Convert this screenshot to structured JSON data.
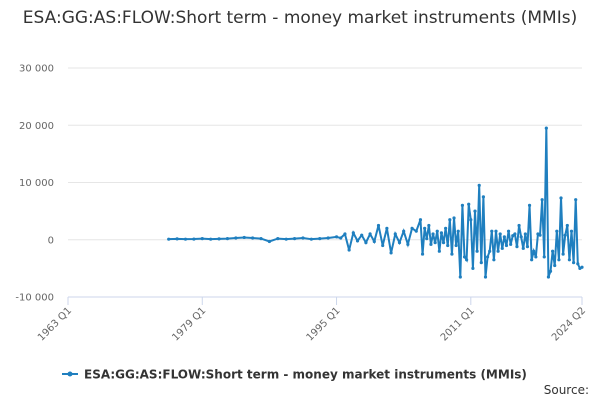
{
  "chart_data": {
    "type": "line",
    "title": "ESA:GG:AS:FLOW:Short term - money market instruments (MMIs)",
    "source": "Source:",
    "x": [
      "1975 Q1",
      "1976 Q1",
      "1977 Q1",
      "1978 Q1",
      "1979 Q1",
      "1980 Q1",
      "1981 Q1",
      "1982 Q1",
      "1983 Q1",
      "1984 Q1",
      "1985 Q1",
      "1986 Q1",
      "1987 Q1",
      "1988 Q1",
      "1989 Q1",
      "1990 Q1",
      "1991 Q1",
      "1992 Q1",
      "1993 Q1",
      "1994 Q1",
      "1995 Q1",
      "1995 Q3",
      "1996 Q1",
      "1996 Q3",
      "1997 Q1",
      "1997 Q3",
      "1998 Q1",
      "1998 Q3",
      "1999 Q1",
      "1999 Q3",
      "2000 Q1",
      "2000 Q3",
      "2001 Q1",
      "2001 Q3",
      "2002 Q1",
      "2002 Q3",
      "2003 Q1",
      "2003 Q3",
      "2004 Q1",
      "2004 Q3",
      "2005 Q1",
      "2005 Q2",
      "2005 Q3",
      "2005 Q4",
      "2006 Q1",
      "2006 Q2",
      "2006 Q3",
      "2006 Q4",
      "2007 Q1",
      "2007 Q2",
      "2007 Q3",
      "2007 Q4",
      "2008 Q1",
      "2008 Q2",
      "2008 Q3",
      "2008 Q4",
      "2009 Q1",
      "2009 Q2",
      "2009 Q3",
      "2009 Q4",
      "2010 Q1",
      "2010 Q2",
      "2010 Q3",
      "2010 Q4",
      "2011 Q1",
      "2011 Q2",
      "2011 Q3",
      "2011 Q4",
      "2012 Q1",
      "2012 Q2",
      "2012 Q3",
      "2012 Q4",
      "2013 Q1",
      "2013 Q2",
      "2013 Q3",
      "2013 Q4",
      "2014 Q1",
      "2014 Q2",
      "2014 Q3",
      "2014 Q4",
      "2015 Q1",
      "2015 Q2",
      "2015 Q3",
      "2015 Q4",
      "2016 Q1",
      "2016 Q2",
      "2016 Q3",
      "2016 Q4",
      "2017 Q1",
      "2017 Q2",
      "2017 Q3",
      "2017 Q4",
      "2018 Q1",
      "2018 Q2",
      "2018 Q3",
      "2018 Q4",
      "2019 Q1",
      "2019 Q2",
      "2019 Q3",
      "2019 Q4",
      "2020 Q1",
      "2020 Q2",
      "2020 Q3",
      "2020 Q4",
      "2021 Q1",
      "2021 Q2",
      "2021 Q3",
      "2021 Q4",
      "2022 Q1",
      "2022 Q2",
      "2022 Q3",
      "2022 Q4",
      "2023 Q1",
      "2023 Q2",
      "2023 Q3",
      "2023 Q4",
      "2024 Q1",
      "2024 Q2"
    ],
    "series": [
      {
        "name": "ESA:GG:AS:FLOW:Short term - money market instruments (MMIs)",
        "color": "#1f7fbf",
        "values": [
          100,
          150,
          100,
          120,
          200,
          100,
          150,
          200,
          300,
          400,
          300,
          200,
          -300,
          200,
          100,
          200,
          300,
          100,
          200,
          300,
          500,
          300,
          1000,
          -1800,
          1200,
          -200,
          800,
          -500,
          1000,
          -300,
          2500,
          -1000,
          2000,
          -2300,
          1000,
          -500,
          1500,
          -800,
          2000,
          1500,
          3500,
          -2500,
          2000,
          200,
          2500,
          -800,
          1000,
          -500,
          1500,
          -2000,
          1200,
          -500,
          2000,
          -1000,
          3500,
          -2500,
          3800,
          -1000,
          1500,
          -6500,
          6000,
          -3000,
          -3500,
          6200,
          3500,
          -5000,
          5000,
          -2000,
          9500,
          -4000,
          7500,
          -6500,
          -3000,
          -2000,
          1500,
          -3500,
          1500,
          -2000,
          1000,
          -1500,
          500,
          -1000,
          1500,
          -800,
          700,
          1000,
          -1200,
          2500,
          500,
          -1500,
          1000,
          -1200,
          6000,
          -3500,
          -2000,
          -3000,
          1000,
          800,
          7000,
          -3000,
          19500,
          -6500,
          -5500,
          -2000,
          -4500,
          1500,
          -3500,
          7300,
          -2500,
          800,
          2500,
          -3500,
          1500,
          -4000,
          7000,
          -4200,
          -5000,
          -4800
        ]
      }
    ],
    "xlim": [
      "1963 Q1",
      "2024 Q2"
    ],
    "xticks": [
      "1963 Q1",
      "1979 Q1",
      "1995 Q1",
      "2011 Q1",
      "2024 Q2"
    ],
    "ylim": [
      -10000,
      30000
    ],
    "yticks": [
      {
        "value": -10000,
        "label": "-10 000"
      },
      0,
      {
        "value": 10000,
        "label": "10 000"
      },
      {
        "value": 20000,
        "label": "20 000"
      },
      {
        "value": 30000,
        "label": "30 000"
      }
    ],
    "grid": true,
    "legend": "bottom"
  }
}
